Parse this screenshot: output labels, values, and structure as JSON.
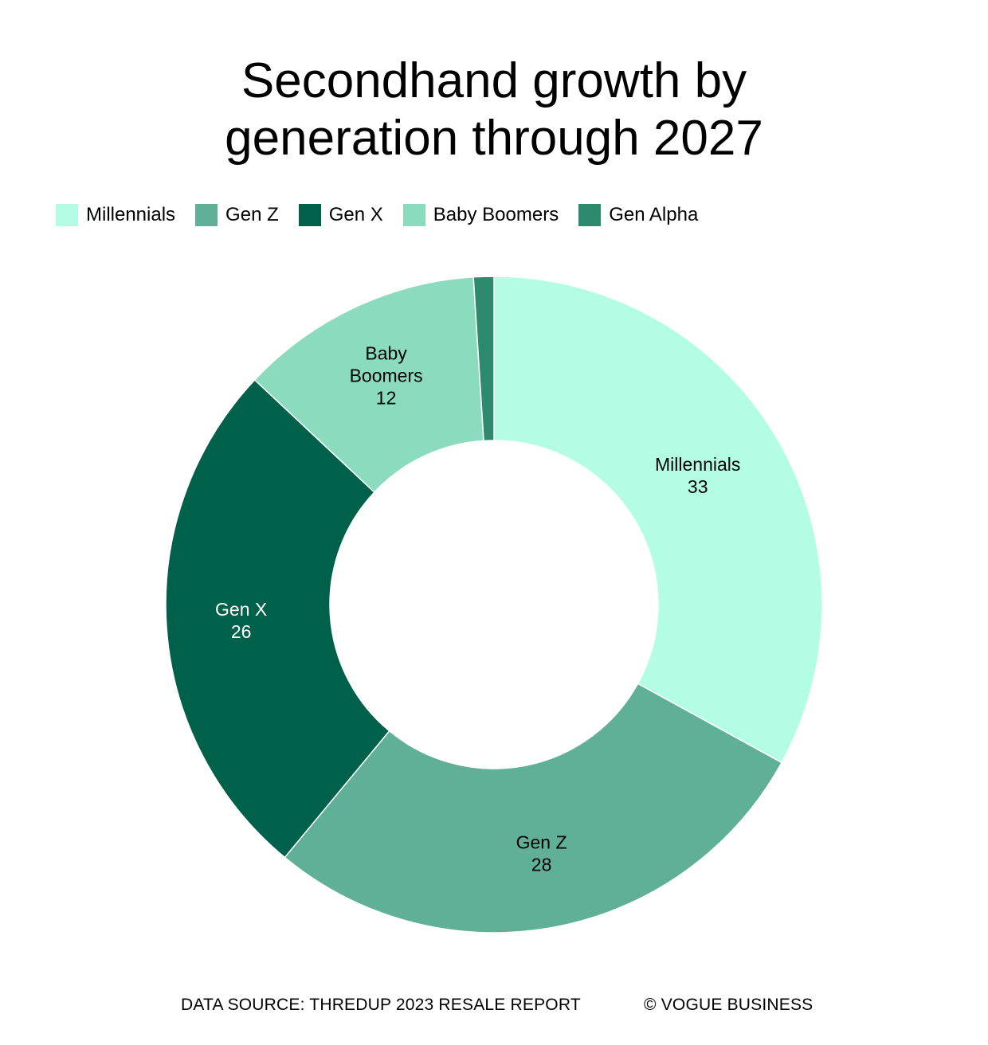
{
  "title_line1": "Secondhand growth by",
  "title_line2": "generation through 2027",
  "source": "DATA SOURCE: THREDUP 2023 RESALE REPORT",
  "credit": "© VOGUE BUSINESS",
  "chart_data": {
    "type": "pie",
    "style": "donut",
    "title": "Secondhand growth by generation through 2027",
    "legend_placement": "top-left",
    "categories": [
      "Millennials",
      "Gen Z",
      "Gen X",
      "Baby Boomers",
      "Gen Alpha"
    ],
    "values": [
      33,
      28,
      26,
      12,
      1
    ],
    "value_labels": [
      "33",
      "28",
      "26",
      "12",
      ""
    ],
    "colors": [
      "#b3fde5",
      "#5fb097",
      "#00614b",
      "#8bdcbf",
      "#2e8a6c"
    ],
    "label_colors": [
      "#000000",
      "#000000",
      "#ffffff",
      "#000000",
      "#000000"
    ]
  }
}
